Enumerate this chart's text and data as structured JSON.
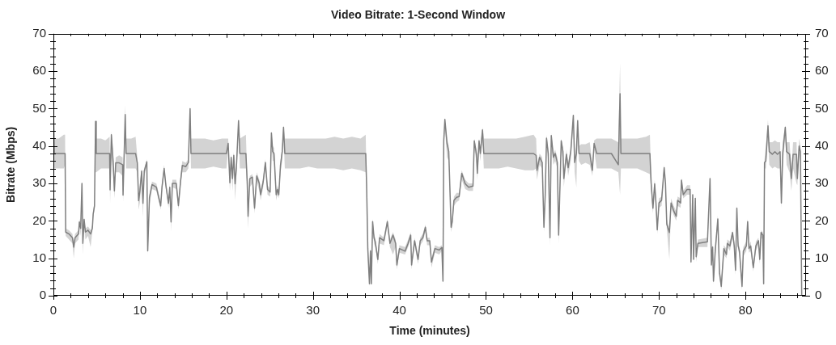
{
  "chart_data": {
    "type": "line",
    "title": "Video Bitrate: 1-Second Window",
    "xlabel": "Time (minutes)",
    "ylabel": "Bitrate (Mbps)",
    "x": [
      0,
      0.1,
      0.6,
      1.2,
      1.35,
      1.42,
      1.8,
      2.2,
      2.35,
      2.5,
      2.9,
      3.0,
      3.15,
      3.3,
      3.4,
      3.55,
      3.7,
      4.0,
      4.3,
      4.5,
      4.6,
      4.75,
      4.87,
      4.95,
      5.5,
      6.0,
      6.5,
      6.55,
      6.7,
      6.9,
      7.05,
      7.2,
      7.6,
      8.0,
      8.05,
      8.15,
      8.3,
      8.4,
      9.0,
      9.5,
      9.7,
      9.85,
      10.0,
      10.2,
      10.35,
      10.5,
      10.8,
      10.9,
      11.1,
      11.4,
      11.9,
      12.4,
      12.55,
      12.8,
      13.0,
      13.3,
      13.45,
      13.6,
      13.75,
      14.2,
      14.45,
      14.7,
      14.9,
      15.3,
      15.6,
      15.8,
      15.9,
      16.5,
      17.5,
      18.5,
      19.5,
      20.0,
      20.2,
      20.4,
      20.55,
      20.7,
      20.85,
      21.0,
      21.15,
      21.4,
      21.55,
      22.25,
      22.4,
      22.5,
      22.7,
      23.0,
      23.25,
      23.5,
      23.8,
      23.95,
      24.25,
      24.5,
      24.75,
      25.05,
      25.2,
      25.35,
      25.5,
      25.75,
      25.9,
      26.05,
      26.25,
      26.45,
      26.6,
      26.75,
      27.5,
      28.5,
      29.5,
      30.5,
      31.5,
      32.5,
      33.5,
      34.5,
      35.5,
      36.1,
      36.2,
      36.34,
      36.53,
      36.65,
      36.75,
      36.9,
      37.06,
      37.2,
      37.5,
      37.7,
      38.2,
      38.6,
      38.9,
      39.25,
      39.56,
      39.7,
      40.0,
      40.65,
      41.0,
      41.3,
      41.4,
      41.75,
      42.15,
      42.4,
      42.7,
      43.0,
      43.2,
      43.5,
      43.7,
      44.1,
      44.6,
      44.9,
      45.03,
      45.12,
      45.25,
      45.5,
      45.7,
      45.97,
      46.1,
      46.3,
      46.6,
      46.9,
      47.2,
      47.6,
      48.0,
      48.5,
      48.65,
      48.9,
      49.0,
      49.2,
      49.35,
      49.6,
      49.75,
      50.5,
      51.5,
      52.5,
      53.5,
      54.5,
      55.5,
      55.8,
      55.9,
      56.2,
      56.5,
      56.7,
      56.85,
      57.0,
      57.2,
      57.4,
      57.55,
      57.8,
      58.0,
      58.25,
      58.4,
      58.7,
      58.9,
      59.0,
      59.3,
      59.5,
      59.8,
      60.1,
      60.25,
      60.45,
      60.6,
      60.75,
      61.0,
      61.5,
      62.0,
      62.3,
      62.5,
      62.8,
      63.5,
      64.5,
      65.3,
      65.5,
      65.6,
      66.5,
      67.5,
      68.5,
      68.95,
      69.1,
      69.3,
      69.5,
      69.65,
      69.8,
      70.0,
      70.3,
      70.6,
      70.75,
      70.9,
      71.2,
      71.4,
      71.7,
      72.0,
      72.15,
      72.5,
      72.6,
      72.8,
      73.25,
      73.6,
      73.7,
      73.9,
      74.0,
      74.2,
      74.3,
      74.5,
      75.6,
      75.9,
      76.06,
      76.2,
      76.3,
      76.5,
      76.8,
      77.0,
      77.2,
      77.5,
      77.8,
      77.9,
      78.2,
      78.5,
      78.7,
      78.85,
      79.0,
      79.15,
      79.3,
      79.6,
      79.75,
      80.1,
      80.25,
      80.4,
      80.6,
      80.9,
      81.2,
      81.5,
      81.65,
      81.8,
      82.0,
      82.1,
      82.2,
      82.35,
      82.6,
      82.75,
      83.1,
      83.4,
      83.7,
      84.0,
      84.15,
      84.3,
      84.6,
      84.75,
      85.1,
      85.3,
      85.5,
      85.9,
      86.0,
      86.2,
      86.35,
      86.5
    ],
    "series": [
      {
        "color": "#7f7f7f",
        "values": [
          50,
          38,
          38,
          38,
          38,
          17,
          16.5,
          15.5,
          13,
          15.5,
          16.5,
          19.7,
          18,
          30,
          14,
          20.4,
          17,
          17.5,
          16.5,
          18,
          21.9,
          24,
          46.6,
          38,
          38,
          38,
          38,
          28.3,
          43,
          36,
          28,
          35.5,
          35.5,
          35,
          26.9,
          35.5,
          48.4,
          38,
          38,
          38,
          35.5,
          25.4,
          28,
          33.3,
          24.7,
          33.3,
          35.8,
          12,
          26.2,
          29.7,
          29,
          24,
          29,
          34,
          29.5,
          24.7,
          29,
          19.7,
          30,
          30,
          24.1,
          30.6,
          34.8,
          34.5,
          35.6,
          50,
          38,
          38,
          38,
          38,
          38,
          38,
          40.7,
          30.2,
          37,
          31.3,
          37.5,
          29.9,
          34.2,
          46.8,
          38,
          38,
          30.6,
          21.2,
          31.3,
          31.7,
          23.4,
          32,
          30,
          27,
          30.5,
          35.6,
          28.4,
          27.7,
          43.5,
          38.5,
          38,
          27,
          28.4,
          27,
          34.9,
          38.5,
          45,
          38,
          38,
          38,
          38,
          38,
          38,
          38,
          38,
          38,
          38,
          38,
          29.9,
          12.6,
          3.2,
          12,
          3.2,
          19.8,
          15.5,
          14.4,
          9.7,
          15.5,
          14.7,
          19.8,
          14,
          16.2,
          14,
          8.2,
          12.6,
          11.9,
          14,
          16.2,
          8.2,
          14.7,
          9.7,
          14.7,
          15.5,
          18.3,
          14.7,
          14.7,
          9,
          12.6,
          12.2,
          12.9,
          3.9,
          41.4,
          47.1,
          40.7,
          38.5,
          18.3,
          19.8,
          25.5,
          26.3,
          26.5,
          32.7,
          29.9,
          29,
          29.3,
          41.4,
          37.8,
          32.7,
          41.4,
          38,
          44.3,
          38,
          38,
          38,
          38,
          38,
          38,
          38,
          37.5,
          33.5,
          37,
          35.6,
          18.3,
          27,
          42.1,
          38,
          15.5,
          42.8,
          37,
          38,
          35.6,
          16.2,
          41.4,
          38.5,
          31.3,
          37.8,
          34.2,
          38.5,
          48.2,
          35.6,
          38,
          46.8,
          38,
          38,
          38,
          38,
          33.5,
          40.7,
          38,
          38,
          38,
          35,
          54,
          38,
          38,
          38,
          38,
          38,
          29.9,
          23.4,
          29.9,
          24.8,
          17.6,
          24.8,
          25.5,
          34.2,
          30,
          19.1,
          16.9,
          24.8,
          22.7,
          21.2,
          25.5,
          24.8,
          30.9,
          27,
          28.4,
          28.4,
          9,
          27,
          9.7,
          26,
          10.4,
          14,
          14.4,
          31.3,
          8.2,
          13,
          3.9,
          11.9,
          20.5,
          6,
          2.5,
          12.6,
          11,
          14,
          13.3,
          16.9,
          13.3,
          6.8,
          23.4,
          13.3,
          12,
          2.5,
          11.9,
          13.3,
          19.8,
          12.6,
          13.3,
          7.5,
          13.3,
          14.7,
          9.7,
          16.9,
          16.2,
          3.2,
          35.6,
          36,
          45.4,
          38.5,
          37.8,
          38.5,
          37.8,
          38.5,
          24.8,
          38,
          45,
          38.5,
          37.8,
          31.3,
          37.8,
          37.8,
          31.3,
          40,
          38.5,
          0
        ],
        "lower": [
          48,
          34,
          34,
          34,
          35,
          16,
          15,
          14,
          10,
          14,
          15,
          18.5,
          16,
          28,
          11,
          19,
          15,
          16,
          13,
          17,
          21,
          23,
          45,
          33,
          34,
          34,
          34,
          24.7,
          37,
          33,
          26,
          33,
          33,
          32,
          25,
          33,
          46,
          34,
          34,
          34,
          33,
          23,
          25,
          32,
          21,
          32,
          34.5,
          11,
          24,
          28.5,
          28,
          23,
          28,
          32.5,
          28.5,
          23.5,
          28,
          17.2,
          29,
          28.5,
          23,
          29.5,
          33,
          33,
          34,
          47,
          34,
          34,
          34,
          34.5,
          34,
          34,
          39,
          28,
          35,
          28,
          35,
          25.5,
          32,
          44,
          34,
          34,
          28,
          18,
          29,
          30,
          22,
          30.5,
          28,
          25.5,
          29,
          34,
          27,
          26.5,
          41,
          36,
          36,
          25.5,
          27,
          26,
          33,
          36,
          43,
          34,
          34,
          34,
          34.5,
          34,
          34,
          34,
          33.5,
          34,
          33.5,
          33,
          28,
          11,
          2.5,
          10,
          2.5,
          18,
          14,
          13,
          8.5,
          14,
          13.5,
          18.5,
          13,
          11,
          13,
          7,
          11.5,
          11,
          13,
          15,
          7,
          13.5,
          8.5,
          13.5,
          14.5,
          17,
          13.5,
          13.5,
          7.5,
          11.5,
          11,
          12,
          3,
          39,
          45,
          37,
          36,
          17,
          18.5,
          24,
          25,
          25.5,
          31,
          28.5,
          28,
          28,
          39,
          36,
          31,
          39,
          36,
          42,
          34,
          34,
          34,
          34.5,
          34,
          33.5,
          33.5,
          34,
          31,
          35,
          34,
          17,
          25,
          40,
          36,
          13.3,
          40,
          35,
          36,
          34,
          14,
          39,
          36,
          29,
          36,
          32,
          36,
          46,
          33,
          29,
          44,
          36,
          35,
          35.5,
          35,
          32,
          39,
          34,
          34,
          34,
          33,
          27,
          34,
          34,
          34,
          33,
          32.5,
          28,
          22,
          28,
          23.5,
          16.5,
          23.5,
          24,
          33,
          28.5,
          18,
          9.7,
          23.5,
          21.5,
          20,
          24,
          23.5,
          29.5,
          26,
          27,
          27,
          8,
          26,
          8.5,
          25,
          9,
          13,
          13,
          30,
          7,
          12,
          3,
          10.5,
          19,
          5,
          1.5,
          11,
          10,
          13,
          12,
          15.5,
          12,
          5.5,
          22,
          12,
          11,
          1.5,
          10.5,
          12,
          18.5,
          11.5,
          12,
          6.5,
          12,
          13.5,
          8.5,
          15.5,
          15,
          2.5,
          34,
          34,
          43,
          35,
          34,
          34.5,
          34,
          34,
          23.5,
          34,
          43,
          35,
          33,
          28,
          34,
          30,
          29.5,
          38,
          36,
          0
        ],
        "upper": [
          51,
          42,
          42,
          43,
          43,
          18,
          17.5,
          16.5,
          14,
          16.5,
          17.5,
          20.5,
          19,
          30.5,
          15,
          21,
          18,
          18.5,
          17.5,
          19,
          23,
          25,
          47,
          42,
          42,
          41.5,
          42.5,
          30,
          44,
          38,
          30,
          37,
          37.5,
          37,
          28,
          37,
          50.9,
          42,
          42,
          42.5,
          37,
          27,
          30,
          34,
          26,
          34,
          36.5,
          13,
          27,
          30.5,
          30,
          25,
          30,
          35,
          30.5,
          25.5,
          30,
          21,
          31,
          31,
          25.5,
          32,
          36,
          35.5,
          36.5,
          50.5,
          42,
          42,
          42,
          41.5,
          42,
          42,
          42,
          32,
          38,
          33,
          38.5,
          31,
          35,
          47,
          42,
          43,
          32,
          22,
          32,
          32.5,
          25,
          33,
          31,
          28,
          31.5,
          36.5,
          29.5,
          28.5,
          44,
          40,
          39.5,
          28,
          29.5,
          28,
          36,
          40,
          45.5,
          42,
          42,
          42,
          42,
          42,
          42,
          42.5,
          42,
          42.5,
          42,
          43,
          31,
          14,
          5,
          13,
          5,
          20.5,
          16.5,
          15.5,
          11,
          16.5,
          15.5,
          20.5,
          15,
          17,
          15,
          9.5,
          13.5,
          13,
          15,
          17,
          9.5,
          15.5,
          11,
          15.5,
          16.5,
          19,
          15.5,
          15.5,
          10,
          13.5,
          13,
          13.5,
          5,
          42,
          47.5,
          42,
          40,
          19.5,
          21,
          26.5,
          27.5,
          27.5,
          33.5,
          31,
          30,
          30,
          42,
          39,
          34,
          42,
          40,
          45,
          42,
          42,
          42,
          42,
          42,
          42.5,
          43,
          42,
          35,
          38,
          37,
          20,
          28,
          43,
          39,
          17,
          43.5,
          38,
          39,
          37,
          17.5,
          42,
          39.5,
          33,
          39,
          35.5,
          39.5,
          48.5,
          37,
          40,
          47,
          40,
          40.5,
          40.5,
          41,
          35,
          41.5,
          42,
          42,
          42,
          41,
          62.3,
          42,
          42,
          42,
          42.5,
          43,
          31,
          25,
          31,
          26,
          19,
          26,
          26.5,
          35,
          31,
          20.5,
          18,
          26,
          24,
          22.5,
          26.5,
          26,
          31.5,
          28,
          29.5,
          29.5,
          10,
          28,
          11,
          27,
          11.5,
          15,
          15.5,
          32,
          9.5,
          14,
          5,
          13,
          21.5,
          7.5,
          4,
          13.5,
          12.5,
          15,
          14.5,
          17.5,
          14.5,
          8,
          24,
          14.5,
          13,
          4,
          13,
          14.5,
          20.5,
          13.5,
          14.5,
          8.5,
          14.5,
          15.5,
          11,
          17.5,
          17,
          4.5,
          36.5,
          40,
          47,
          41,
          41,
          41.5,
          41,
          41,
          26,
          41,
          45.5,
          41,
          41,
          33,
          41,
          41,
          33,
          42,
          40,
          0
        ]
      }
    ],
    "xlim": [
      0,
      87
    ],
    "xticks": [
      0,
      {
        "value": 2,
        "label": null
      },
      {
        "value": 4,
        "label": null
      },
      {
        "value": 6,
        "label": null
      },
      {
        "value": 8,
        "label": null
      },
      10,
      {
        "value": 12,
        "label": null
      },
      {
        "value": 14,
        "label": null
      },
      {
        "value": 16,
        "label": null
      },
      {
        "value": 18,
        "label": null
      },
      20,
      {
        "value": 22,
        "label": null
      },
      {
        "value": 24,
        "label": null
      },
      {
        "value": 26,
        "label": null
      },
      {
        "value": 28,
        "label": null
      },
      30,
      {
        "value": 32,
        "label": null
      },
      {
        "value": 34,
        "label": null
      },
      {
        "value": 36,
        "label": null
      },
      {
        "value": 38,
        "label": null
      },
      40,
      {
        "value": 42,
        "label": null
      },
      {
        "value": 44,
        "label": null
      },
      {
        "value": 46,
        "label": null
      },
      {
        "value": 48,
        "label": null
      },
      50,
      {
        "value": 52,
        "label": null
      },
      {
        "value": 54,
        "label": null
      },
      {
        "value": 56,
        "label": null
      },
      {
        "value": 58,
        "label": null
      },
      60,
      {
        "value": 62,
        "label": null
      },
      {
        "value": 64,
        "label": null
      },
      {
        "value": 66,
        "label": null
      },
      {
        "value": 68,
        "label": null
      },
      70,
      {
        "value": 72,
        "label": null
      },
      {
        "value": 74,
        "label": null
      },
      {
        "value": 76,
        "label": null
      },
      {
        "value": 78,
        "label": null
      },
      80,
      {
        "value": 82,
        "label": null
      },
      {
        "value": 84,
        "label": null
      },
      {
        "value": 86,
        "label": null
      }
    ],
    "ylim": [
      0,
      70
    ],
    "yticks": [
      0,
      {
        "value": 2,
        "label": null
      },
      {
        "value": 4,
        "label": null
      },
      {
        "value": 6,
        "label": null
      },
      {
        "value": 8,
        "label": null
      },
      10,
      {
        "value": 12,
        "label": null
      },
      {
        "value": 14,
        "label": null
      },
      {
        "value": 16,
        "label": null
      },
      {
        "value": 18,
        "label": null
      },
      20,
      {
        "value": 22,
        "label": null
      },
      {
        "value": 24,
        "label": null
      },
      {
        "value": 26,
        "label": null
      },
      {
        "value": 28,
        "label": null
      },
      30,
      {
        "value": 32,
        "label": null
      },
      {
        "value": 34,
        "label": null
      },
      {
        "value": 36,
        "label": null
      },
      {
        "value": 38,
        "label": null
      },
      40,
      {
        "value": 42,
        "label": null
      },
      {
        "value": 44,
        "label": null
      },
      {
        "value": 46,
        "label": null
      },
      {
        "value": 48,
        "label": null
      },
      50,
      {
        "value": 52,
        "label": null
      },
      {
        "value": 54,
        "label": null
      },
      {
        "value": 56,
        "label": null
      },
      {
        "value": 58,
        "label": null
      },
      60,
      {
        "value": 62,
        "label": null
      },
      {
        "value": 64,
        "label": null
      },
      {
        "value": 66,
        "label": null
      },
      {
        "value": 68,
        "label": null
      },
      70
    ],
    "y2lim": [
      0,
      70
    ],
    "y2ticks": [
      0,
      {
        "value": 2,
        "label": null
      },
      {
        "value": 4,
        "label": null
      },
      {
        "value": 6,
        "label": null
      },
      {
        "value": 8,
        "label": null
      },
      10,
      {
        "value": 12,
        "label": null
      },
      {
        "value": 14,
        "label": null
      },
      {
        "value": 16,
        "label": null
      },
      {
        "value": 18,
        "label": null
      },
      20,
      {
        "value": 22,
        "label": null
      },
      {
        "value": 24,
        "label": null
      },
      {
        "value": 26,
        "label": null
      },
      {
        "value": 28,
        "label": null
      },
      30,
      {
        "value": 32,
        "label": null
      },
      {
        "value": 34,
        "label": null
      },
      {
        "value": 36,
        "label": null
      },
      {
        "value": 38,
        "label": null
      },
      40,
      {
        "value": 42,
        "label": null
      },
      {
        "value": 44,
        "label": null
      },
      {
        "value": 46,
        "label": null
      },
      {
        "value": 48,
        "label": null
      },
      50,
      {
        "value": 52,
        "label": null
      },
      {
        "value": 54,
        "label": null
      },
      {
        "value": 56,
        "label": null
      },
      {
        "value": 58,
        "label": null
      },
      60,
      {
        "value": 62,
        "label": null
      },
      {
        "value": 64,
        "label": null
      },
      {
        "value": 66,
        "label": null
      },
      {
        "value": 68,
        "label": null
      },
      70
    ],
    "marker": "none",
    "line_style": "solid"
  }
}
